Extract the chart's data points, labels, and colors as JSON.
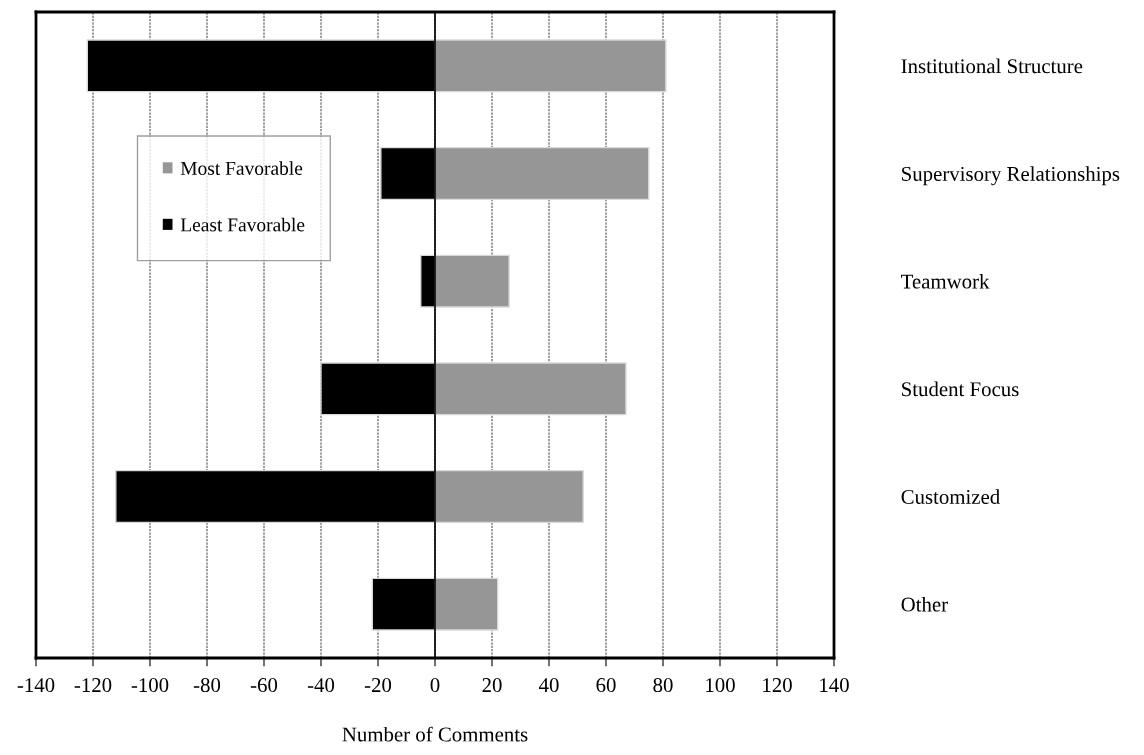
{
  "chart_data": {
    "type": "bar",
    "orientation": "horizontal",
    "xlabel": "Number of Comments",
    "categories": [
      "Institutional Structure",
      "Supervisory Relationships",
      "Teamwork",
      "Student Focus",
      "Customized",
      "Other"
    ],
    "series": [
      {
        "name": "Most Favorable",
        "color": "#969696",
        "values": [
          81,
          75,
          26,
          67,
          52,
          22
        ]
      },
      {
        "name": "Least Favorable",
        "color": "#000000",
        "values": [
          -122,
          -19,
          -5,
          -40,
          -112,
          -22
        ]
      }
    ],
    "xlim": [
      -140,
      140
    ],
    "xticks": [
      -140,
      -120,
      -100,
      -80,
      -60,
      -40,
      -20,
      0,
      20,
      40,
      60,
      80,
      100,
      120,
      140
    ],
    "stacked": true,
    "grid": "x",
    "legend": "left"
  }
}
